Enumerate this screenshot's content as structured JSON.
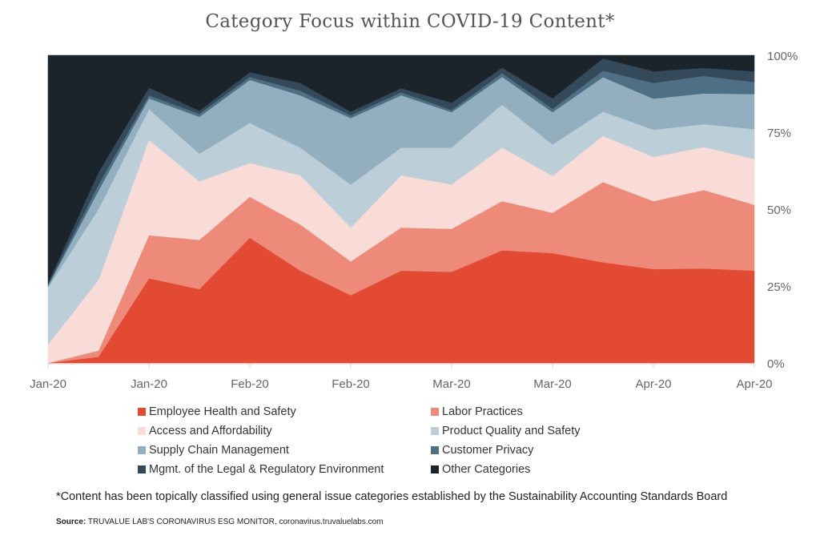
{
  "chart_data": {
    "type": "area",
    "stacked": "percent",
    "title": "Category Focus within COVID-19 Content*",
    "x_tick_labels": [
      "Jan-20",
      "Jan-20",
      "Feb-20",
      "Feb-20",
      "Mar-20",
      "Mar-20",
      "Apr-20",
      "Apr-20"
    ],
    "y_tick_labels": [
      "0%",
      "25%",
      "50%",
      "75%",
      "100%"
    ],
    "ylim": [
      0,
      100
    ],
    "y_axis_side": "right",
    "grid": false,
    "legend_position": "bottom",
    "series": [
      {
        "name": "Employee Health and Safety",
        "color": "#e34a33",
        "values": [
          0,
          2,
          27.5,
          24,
          40.7,
          30,
          22,
          30,
          29.6,
          36.6,
          35.7,
          32.7,
          30.5,
          30.7,
          30
        ]
      },
      {
        "name": "Labor Practices",
        "color": "#ee8a7a",
        "values": [
          0,
          2,
          14,
          16,
          13.3,
          15,
          11,
          14,
          14,
          16,
          13.1,
          26.1,
          22.1,
          25.5,
          21.4
        ]
      },
      {
        "name": "Access and Affordability",
        "color": "#f9dbd8",
        "values": [
          6,
          23,
          31,
          19,
          11,
          16,
          11,
          17,
          14.4,
          17.4,
          12,
          15,
          14.4,
          14,
          14.9
        ]
      },
      {
        "name": "Product Quality and Safety",
        "color": "#bccfd9",
        "values": [
          18.5,
          23,
          10,
          9,
          13,
          9,
          14,
          9,
          12,
          14,
          10.2,
          7.9,
          8.8,
          7.4,
          9.7
        ]
      },
      {
        "name": "Supply Chain Management",
        "color": "#92aebf",
        "values": [
          0.5,
          6,
          3.5,
          12,
          14,
          17,
          21.6,
          17,
          11.5,
          9,
          10.5,
          11.2,
          10.1,
          10,
          11.4
        ]
      },
      {
        "name": "Customer Privacy",
        "color": "#4e6f84",
        "values": [
          0.5,
          2,
          1,
          1,
          1,
          1.5,
          0.9,
          1,
          0.7,
          1.2,
          1.1,
          2.1,
          5.1,
          5.7,
          3.9
        ]
      },
      {
        "name": "Mgmt. of the Legal & Regulatory Environment",
        "color": "#34495a",
        "values": [
          0.5,
          4,
          2.5,
          1,
          1.5,
          2.5,
          1.2,
          1.3,
          2.4,
          1.8,
          3.4,
          4,
          3.8,
          2.6,
          3.5
        ]
      },
      {
        "name": "Other Categories",
        "color": "#1b242b",
        "values": [
          74,
          38,
          10.5,
          18,
          5.5,
          9,
          18.3,
          10.7,
          15.4,
          4,
          14,
          1,
          5.2,
          4.1,
          5.2
        ]
      }
    ]
  },
  "footnote": "*Content has been topically classified using general issue categories established by the Sustainability Accounting Standards Board",
  "source": {
    "label": "Source:",
    "text": " TRUVALUE LAB'S CORONAVIRUS ESG MONITOR, coronavirus.truvaluelabs.com"
  }
}
